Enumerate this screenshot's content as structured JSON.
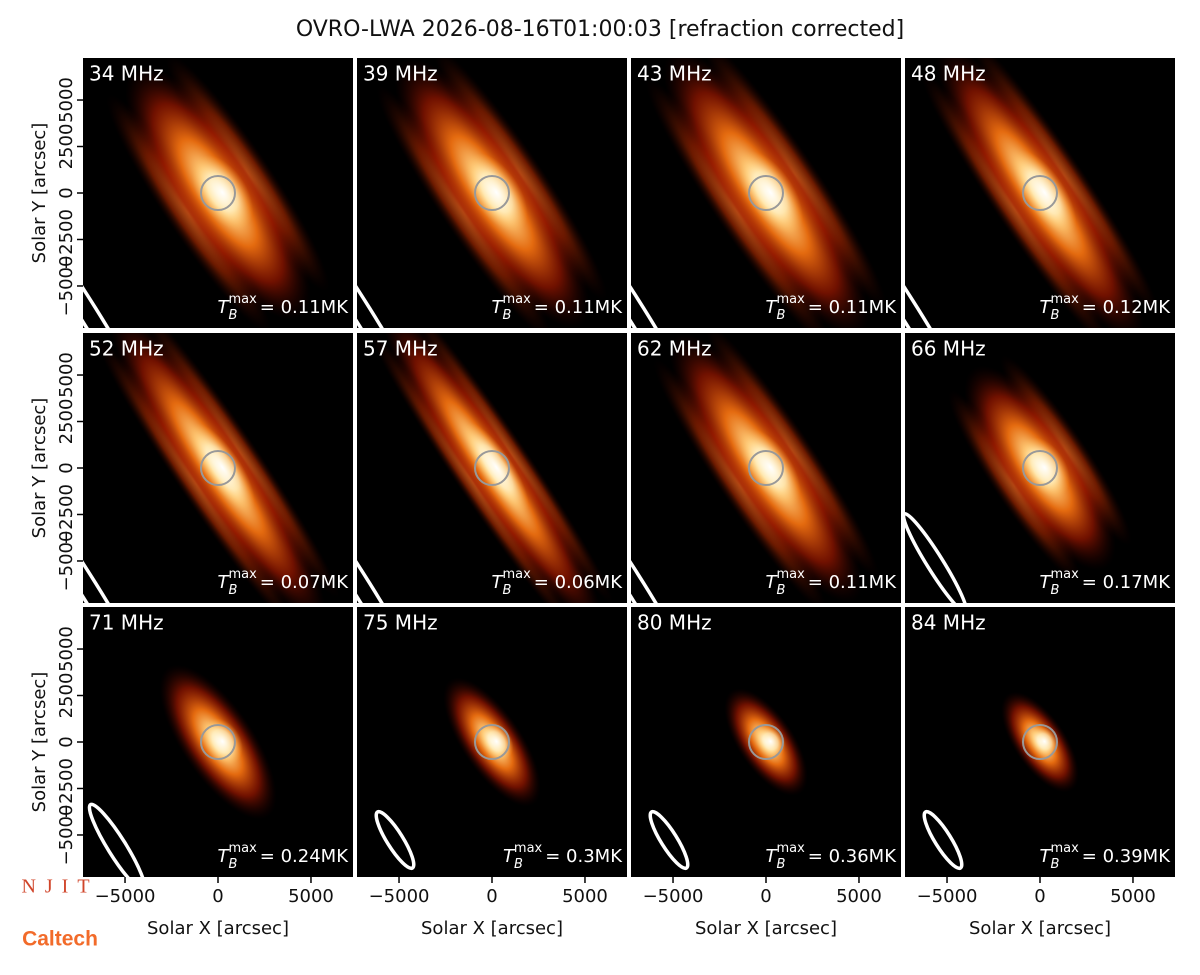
{
  "chart_data": {
    "type": "image",
    "title": "OVRO-LWA 2026-08-16T01:00:03 [refraction corrected]",
    "xlabel": "Solar X [arcsec]",
    "ylabel": "Solar Y [arcsec]",
    "xlim": [
      -7260,
      7260
    ],
    "ylim": [
      -7260,
      7260
    ],
    "xticks": [
      {
        "value": -5000,
        "label": "−5000"
      },
      0,
      5000
    ],
    "yticks": [
      {
        "value": -5000,
        "label": "−5000"
      },
      {
        "value": -2500,
        "label": "−2500"
      },
      0,
      2500,
      5000
    ],
    "tb_symbol": {
      "base": "T",
      "sub": "B",
      "sup": "max"
    },
    "panels": [
      {
        "label": "34 MHz",
        "tb": "= 0.11MK"
      },
      {
        "label": "39 MHz",
        "tb": "= 0.11MK"
      },
      {
        "label": "43 MHz",
        "tb": "= 0.11MK"
      },
      {
        "label": "48 MHz",
        "tb": "= 0.12MK"
      },
      {
        "label": "52 MHz",
        "tb": "= 0.07MK"
      },
      {
        "label": "57 MHz",
        "tb": "= 0.06MK"
      },
      {
        "label": "62 MHz",
        "tb": "= 0.11MK"
      },
      {
        "label": "66 MHz",
        "tb": "= 0.17MK"
      },
      {
        "label": "71 MHz",
        "tb": "= 0.24MK"
      },
      {
        "label": "75 MHz",
        "tb": "= 0.3MK"
      },
      {
        "label": "80 MHz",
        "tb": "= 0.36MK"
      },
      {
        "label": "84 MHz",
        "tb": "= 0.39MK"
      }
    ]
  },
  "logos": {
    "njit": "NJIT",
    "caltech": "Caltech"
  }
}
